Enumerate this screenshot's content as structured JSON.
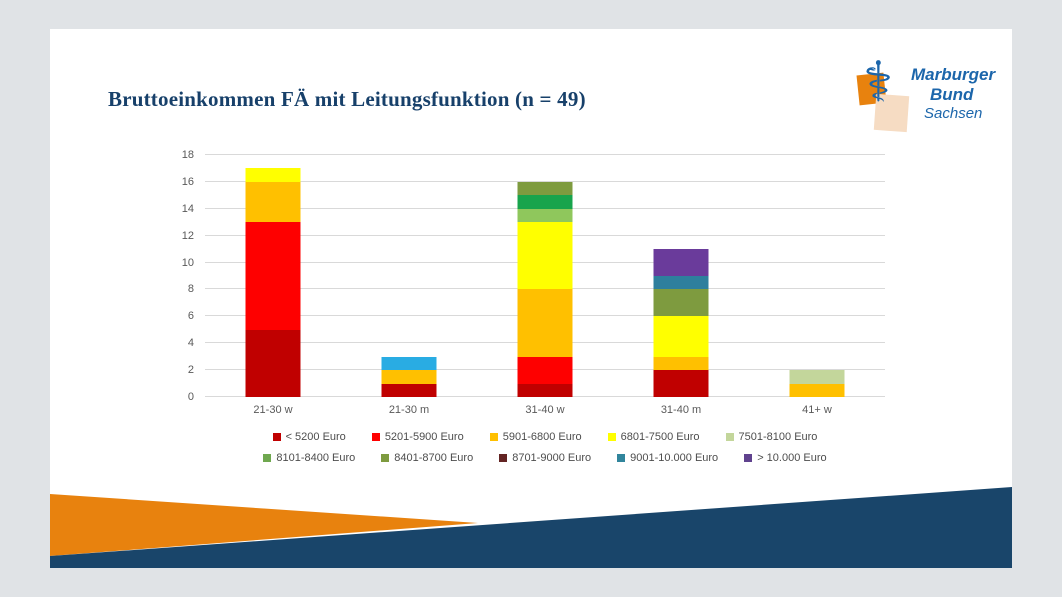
{
  "slide": {
    "title": "Bruttoeinkommen FÄ mit Leitungsfunktion (n = 49)"
  },
  "logo": {
    "symbol": "⚕",
    "line1": "Marburger",
    "line2": "Bund",
    "line3": "Sachsen"
  },
  "colors": {
    "page_bg": "#E0E3E6",
    "slide_bg": "#FFFFFF",
    "title": "#17406A",
    "axis_text": "#595959",
    "gridline": "#D9D9D9",
    "footer_blue": "#19456A",
    "brand_orange": "#E8820E",
    "logo_blue": "#1C66AB",
    "logo_peach": "#F6DCC3"
  },
  "chart_data": {
    "type": "bar",
    "stacked": true,
    "grid": true,
    "legend_position": "bottom",
    "ylim": [
      0,
      18
    ],
    "ytick_step": 2,
    "xlabel": "",
    "ylabel": "",
    "categories": [
      "21-30 w",
      "21-30 m",
      "31-40 w",
      "31-40 m",
      "41+ w"
    ],
    "series": [
      {
        "name": "< 5200 Euro",
        "color": "#C00000",
        "values": [
          5,
          1,
          1,
          2,
          0
        ]
      },
      {
        "name": "5201-5900 Euro",
        "color": "#FE0000",
        "values": [
          8,
          0,
          2,
          0,
          0
        ]
      },
      {
        "name": "5901-6800 Euro",
        "color": "#FFC000",
        "values": [
          3,
          1,
          5,
          1,
          1
        ]
      },
      {
        "name": "6801-7500 Euro",
        "color": "#FFFF00",
        "values": [
          1,
          0,
          5,
          3,
          0
        ]
      },
      {
        "name": "7501-8100 Euro",
        "color": "#C3D69B",
        "values": [
          0,
          0,
          1,
          0,
          1
        ]
      },
      {
        "name": "8101-8400 Euro",
        "color": "#6FA84F",
        "values": [
          0,
          0,
          1,
          0,
          0
        ]
      },
      {
        "name": "8401-8700 Euro",
        "color": "#7E9B3F",
        "values": [
          0,
          0,
          1,
          2,
          0
        ]
      },
      {
        "name": "8701-9000 Euro",
        "color": "#632423",
        "values": [
          0,
          0,
          0,
          0,
          0
        ]
      },
      {
        "name": "9001-10.000 Euro",
        "color": "#31859C",
        "values": [
          0,
          1,
          0,
          1,
          0
        ]
      },
      {
        "name": "> 10.000 Euro",
        "color": "#60428E",
        "values": [
          0,
          0,
          0,
          2,
          0
        ]
      }
    ],
    "color_overrides": {
      "21-30 m": {
        "9001-10.000 Euro": "#29ACE3"
      },
      "31-40 w": {
        "7501-8100 Euro": "#8FC75C",
        "8101-8400 Euro": "#18A44C"
      },
      "31-40 m": {
        "9001-10.000 Euro": "#2E7F9D",
        "> 10.000 Euro": "#6A3B9B"
      }
    },
    "legend_rows": [
      5,
      5
    ]
  }
}
